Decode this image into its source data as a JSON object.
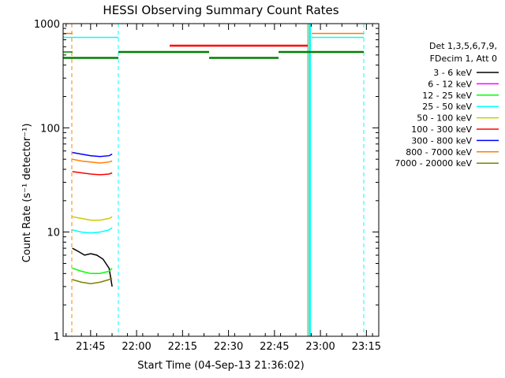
{
  "chart_data": {
    "type": "line",
    "title": "HESSI Observing Summary Count Rates",
    "xlabel": "Start Time (04-Sep-13 21:36:02)",
    "ylabel": "Count Rate (s⁻¹ detector⁻¹)",
    "yscale": "log",
    "ylim": [
      1,
      1000
    ],
    "xlim_minutes": [
      0,
      103
    ],
    "y_ticks": [
      {
        "v": 1,
        "label": "1"
      },
      {
        "v": 10,
        "label": "10"
      },
      {
        "v": 100,
        "label": "100"
      },
      {
        "v": 1000,
        "label": "1000"
      }
    ],
    "x_ticks": [
      {
        "t": 8.97,
        "label": "21:45"
      },
      {
        "t": 23.97,
        "label": "22:00"
      },
      {
        "t": 38.97,
        "label": "22:15"
      },
      {
        "t": 53.97,
        "label": "22:30"
      },
      {
        "t": 68.97,
        "label": "22:45"
      },
      {
        "t": 83.97,
        "label": "23:00"
      },
      {
        "t": 98.97,
        "label": "23:15"
      }
    ],
    "legend": {
      "header": [
        "Det 1,3,5,6,7,9,",
        "FDecim 1, Att 0"
      ],
      "placement": "right"
    },
    "series": [
      {
        "name": "3 - 6 keV",
        "color": "#000000",
        "points": [
          [
            3,
            7
          ],
          [
            5,
            6.5
          ],
          [
            7,
            6
          ],
          [
            9,
            6.2
          ],
          [
            11,
            6
          ],
          [
            13,
            5.5
          ],
          [
            15,
            4.5
          ],
          [
            16,
            3
          ]
        ]
      },
      {
        "name": "6 - 12 keV",
        "color": "#ff00ff",
        "points": []
      },
      {
        "name": "12 - 25 keV",
        "color": "#00ff00",
        "points": [
          [
            3,
            4.5
          ],
          [
            6,
            4.2
          ],
          [
            9,
            4
          ],
          [
            12,
            4
          ],
          [
            15,
            4.2
          ],
          [
            16,
            4.5
          ]
        ]
      },
      {
        "name": "25 - 50 keV",
        "color": "#00ffff",
        "points": [
          [
            3,
            10.5
          ],
          [
            6,
            10
          ],
          [
            9,
            9.8
          ],
          [
            12,
            10
          ],
          [
            15,
            10.5
          ],
          [
            16,
            11
          ]
        ]
      },
      {
        "name": "50 - 100 keV",
        "color": "#cccc00",
        "points": [
          [
            3,
            14
          ],
          [
            6,
            13.5
          ],
          [
            9,
            13
          ],
          [
            12,
            13
          ],
          [
            15,
            13.5
          ],
          [
            16,
            14
          ]
        ]
      },
      {
        "name": "100 - 300 keV",
        "color": "#ff0000",
        "points": [
          [
            3,
            38
          ],
          [
            6,
            37
          ],
          [
            9,
            36
          ],
          [
            12,
            35.5
          ],
          [
            15,
            36
          ],
          [
            16,
            37
          ]
        ]
      },
      {
        "name": "300 - 800 keV",
        "color": "#0000ff",
        "points": [
          [
            3,
            58
          ],
          [
            6,
            56
          ],
          [
            9,
            54
          ],
          [
            12,
            53
          ],
          [
            15,
            54
          ],
          [
            16,
            56
          ]
        ]
      },
      {
        "name": "800 - 7000 keV",
        "color": "#ff8000",
        "points": [
          [
            3,
            50
          ],
          [
            6,
            48
          ],
          [
            9,
            47
          ],
          [
            12,
            46
          ],
          [
            15,
            47
          ],
          [
            16,
            48
          ]
        ]
      },
      {
        "name": "7000 - 20000 keV",
        "color": "#808000",
        "points": [
          [
            3,
            3.5
          ],
          [
            6,
            3.3
          ],
          [
            9,
            3.2
          ],
          [
            12,
            3.3
          ],
          [
            15,
            3.5
          ],
          [
            16,
            3.6
          ]
        ]
      }
    ]
  }
}
